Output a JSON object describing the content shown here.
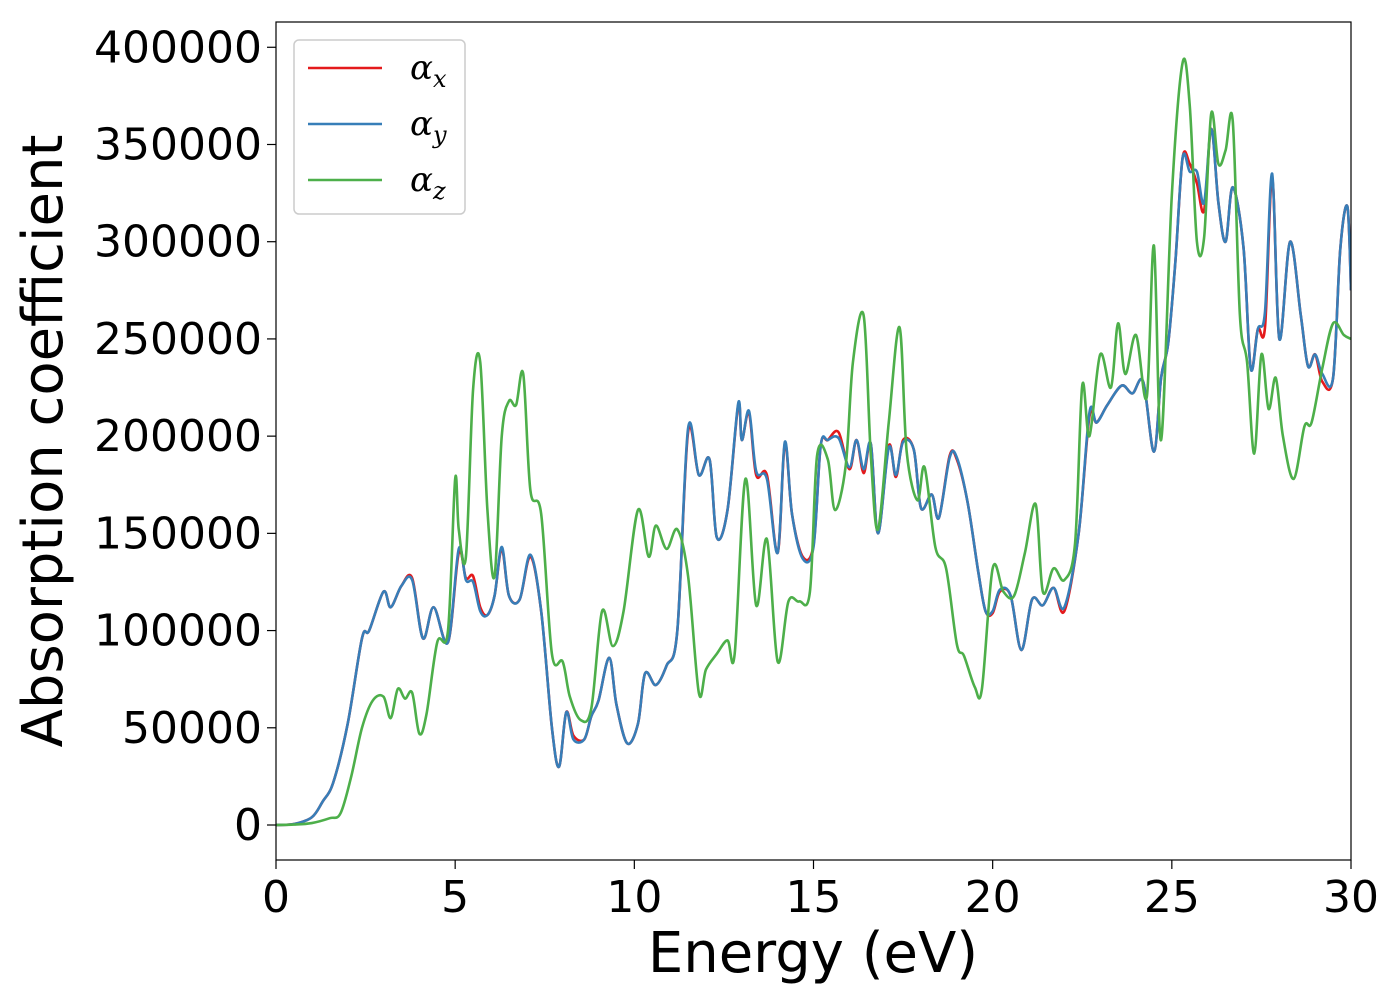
{
  "chart_data": {
    "type": "line",
    "title": "",
    "xlabel": "Energy (eV)",
    "ylabel": "Absorption coefficient",
    "xlim": [
      0,
      30
    ],
    "ylim": [
      -18000,
      413000
    ],
    "xticks": [
      0,
      5,
      10,
      15,
      20,
      25,
      30
    ],
    "yticks": [
      0,
      50000,
      100000,
      150000,
      200000,
      250000,
      300000,
      350000,
      400000
    ],
    "grid": false,
    "legend_position": "top-left",
    "series": [
      {
        "name": "α_x",
        "symbol": "α",
        "subscript": "x",
        "color": "#e41a1c",
        "x": [
          0,
          0.5,
          1.0,
          1.3,
          1.6,
          2.0,
          2.4,
          2.6,
          3.0,
          3.2,
          3.5,
          3.8,
          4.1,
          4.4,
          4.8,
          5.1,
          5.3,
          5.5,
          5.7,
          5.9,
          6.1,
          6.3,
          6.5,
          6.8,
          7.1,
          7.4,
          7.7,
          7.9,
          8.1,
          8.3,
          8.6,
          8.8,
          9.0,
          9.3,
          9.5,
          9.8,
          10.1,
          10.3,
          10.6,
          10.9,
          11.2,
          11.5,
          11.8,
          12.1,
          12.3,
          12.6,
          12.9,
          13.0,
          13.2,
          13.4,
          13.7,
          14.0,
          14.2,
          14.4,
          14.7,
          15.0,
          15.2,
          15.4,
          15.7,
          16.0,
          16.2,
          16.4,
          16.6,
          16.8,
          17.1,
          17.3,
          17.5,
          17.8,
          18.0,
          18.3,
          18.5,
          18.8,
          19.0,
          19.3,
          19.6,
          19.8,
          20.0,
          20.2,
          20.5,
          20.8,
          21.1,
          21.4,
          21.7,
          22.0,
          22.4,
          22.7,
          22.9,
          23.2,
          23.6,
          23.9,
          24.2,
          24.5,
          24.7,
          24.9,
          25.1,
          25.3,
          25.5,
          25.7,
          25.9,
          26.1,
          26.3,
          26.5,
          26.7,
          27.0,
          27.2,
          27.4,
          27.6,
          27.8,
          28.0,
          28.3,
          28.6,
          28.8,
          29.0,
          29.2,
          29.5,
          29.7,
          29.9,
          30.0
        ],
        "y": [
          0,
          500,
          4000,
          12000,
          22000,
          52000,
          96000,
          100000,
          120000,
          112000,
          123000,
          127000,
          96000,
          112000,
          94000,
          140000,
          127000,
          128000,
          112000,
          108000,
          118000,
          142000,
          118000,
          116000,
          138000,
          110000,
          50000,
          30000,
          58000,
          46000,
          44000,
          56000,
          64000,
          86000,
          62000,
          42000,
          52000,
          78000,
          72000,
          82000,
          100000,
          202000,
          180000,
          188000,
          148000,
          162000,
          216000,
          198000,
          212000,
          180000,
          180000,
          140000,
          196000,
          160000,
          138000,
          144000,
          195000,
          198000,
          202000,
          183000,
          198000,
          181000,
          196000,
          150000,
          195000,
          179000,
          198000,
          193000,
          163000,
          170000,
          158000,
          190000,
          188000,
          166000,
          130000,
          110000,
          109000,
          120000,
          118000,
          90000,
          116000,
          113000,
          122000,
          110000,
          150000,
          210000,
          207000,
          216000,
          226000,
          222000,
          228000,
          192000,
          230000,
          248000,
          290000,
          343000,
          340000,
          330000,
          316000,
          358000,
          320000,
          300000,
          328000,
          297000,
          235000,
          255000,
          256000,
          333000,
          250000,
          300000,
          262000,
          236000,
          242000,
          228000,
          230000,
          296000,
          318000,
          275000
        ]
      },
      {
        "name": "α_y",
        "symbol": "α",
        "subscript": "y",
        "color": "#377eb8",
        "x": [
          0,
          0.5,
          1.0,
          1.3,
          1.6,
          2.0,
          2.4,
          2.6,
          3.0,
          3.2,
          3.5,
          3.8,
          4.1,
          4.4,
          4.8,
          5.1,
          5.3,
          5.5,
          5.7,
          5.9,
          6.1,
          6.3,
          6.5,
          6.8,
          7.1,
          7.4,
          7.7,
          7.9,
          8.1,
          8.3,
          8.6,
          8.8,
          9.0,
          9.3,
          9.5,
          9.8,
          10.1,
          10.3,
          10.6,
          10.9,
          11.2,
          11.5,
          11.8,
          12.1,
          12.3,
          12.6,
          12.9,
          13.0,
          13.2,
          13.4,
          13.7,
          14.0,
          14.2,
          14.4,
          14.7,
          15.0,
          15.2,
          15.4,
          15.7,
          16.0,
          16.2,
          16.4,
          16.6,
          16.8,
          17.1,
          17.3,
          17.5,
          17.8,
          18.0,
          18.3,
          18.5,
          18.8,
          19.0,
          19.3,
          19.6,
          19.8,
          20.0,
          20.2,
          20.5,
          20.8,
          21.1,
          21.4,
          21.7,
          22.0,
          22.4,
          22.7,
          22.9,
          23.2,
          23.6,
          23.9,
          24.2,
          24.5,
          24.7,
          24.9,
          25.1,
          25.3,
          25.5,
          25.7,
          25.9,
          26.1,
          26.3,
          26.5,
          26.7,
          27.0,
          27.2,
          27.4,
          27.6,
          27.8,
          28.0,
          28.3,
          28.6,
          28.8,
          29.0,
          29.2,
          29.5,
          29.7,
          29.9,
          30.0
        ],
        "y": [
          0,
          500,
          4000,
          12000,
          22000,
          52000,
          96000,
          100000,
          120000,
          112000,
          123000,
          126000,
          96000,
          112000,
          94000,
          142000,
          126000,
          125000,
          110000,
          108000,
          118000,
          143000,
          118000,
          116000,
          139000,
          110000,
          50000,
          30000,
          58000,
          44000,
          44000,
          56000,
          64000,
          86000,
          62000,
          42000,
          52000,
          78000,
          72000,
          82000,
          100000,
          204000,
          180000,
          188000,
          148000,
          162000,
          217000,
          198000,
          213000,
          182000,
          178000,
          140000,
          197000,
          160000,
          137000,
          143000,
          195000,
          198000,
          199000,
          184000,
          198000,
          183000,
          196000,
          150000,
          194000,
          180000,
          197000,
          193000,
          163000,
          170000,
          158000,
          189000,
          189000,
          166000,
          130000,
          110000,
          110000,
          121000,
          118000,
          90000,
          116000,
          113000,
          122000,
          112000,
          150000,
          212000,
          207000,
          216000,
          226000,
          222000,
          228000,
          192000,
          230000,
          248000,
          290000,
          343000,
          336000,
          336000,
          320000,
          358000,
          320000,
          300000,
          328000,
          297000,
          235000,
          255000,
          264000,
          335000,
          250000,
          300000,
          262000,
          236000,
          242000,
          232000,
          230000,
          296000,
          318000,
          275000
        ]
      },
      {
        "name": "α_z",
        "symbol": "α",
        "subscript": "z",
        "color": "#4daf4a",
        "x": [
          0,
          0.5,
          1.0,
          1.5,
          1.8,
          2.1,
          2.4,
          2.7,
          3.0,
          3.2,
          3.4,
          3.6,
          3.8,
          4.0,
          4.2,
          4.5,
          4.8,
          5.0,
          5.1,
          5.3,
          5.5,
          5.7,
          5.9,
          6.1,
          6.3,
          6.5,
          6.7,
          6.9,
          7.1,
          7.4,
          7.7,
          8.0,
          8.2,
          8.5,
          8.8,
          9.1,
          9.4,
          9.7,
          10.1,
          10.4,
          10.6,
          10.9,
          11.2,
          11.5,
          11.8,
          12.0,
          12.3,
          12.6,
          12.8,
          13.1,
          13.4,
          13.7,
          14.0,
          14.3,
          14.6,
          14.9,
          15.1,
          15.4,
          15.6,
          15.9,
          16.1,
          16.4,
          16.6,
          16.8,
          17.1,
          17.4,
          17.6,
          17.9,
          18.1,
          18.4,
          18.7,
          19.0,
          19.2,
          19.5,
          19.7,
          20.0,
          20.3,
          20.6,
          20.9,
          21.2,
          21.4,
          21.7,
          22.0,
          22.3,
          22.5,
          22.7,
          23.0,
          23.3,
          23.5,
          23.7,
          24.0,
          24.3,
          24.5,
          24.7,
          25.0,
          25.3,
          25.5,
          25.7,
          25.9,
          26.1,
          26.3,
          26.5,
          26.7,
          26.9,
          27.1,
          27.3,
          27.5,
          27.7,
          27.9,
          28.1,
          28.4,
          28.7,
          28.9,
          29.2,
          29.5,
          29.8,
          30.0
        ],
        "y": [
          0,
          200,
          1000,
          3500,
          6000,
          25000,
          50000,
          64000,
          66000,
          55000,
          70000,
          65000,
          68000,
          47000,
          57000,
          94000,
          100000,
          178000,
          152000,
          138000,
          224000,
          238000,
          162000,
          128000,
          200000,
          218000,
          216000,
          232000,
          172000,
          160000,
          88000,
          84000,
          66000,
          54000,
          60000,
          110000,
          92000,
          110000,
          162000,
          138000,
          154000,
          142000,
          152000,
          128000,
          68000,
          80000,
          88000,
          95000,
          88000,
          178000,
          113000,
          147000,
          84000,
          115000,
          115000,
          120000,
          190000,
          188000,
          162000,
          185000,
          238000,
          262000,
          190000,
          152000,
          207000,
          256000,
          192000,
          167000,
          184000,
          143000,
          132000,
          93000,
          87000,
          71000,
          70000,
          132000,
          120000,
          118000,
          140000,
          165000,
          120000,
          132000,
          126000,
          145000,
          226000,
          200000,
          242000,
          225000,
          258000,
          232000,
          252000,
          220000,
          298000,
          198000,
          324000,
          392000,
          370000,
          300000,
          302000,
          366000,
          340000,
          347000,
          362000,
          262000,
          238000,
          191000,
          242000,
          214000,
          230000,
          200000,
          178000,
          205000,
          207000,
          235000,
          258000,
          252000,
          250000
        ]
      }
    ]
  }
}
